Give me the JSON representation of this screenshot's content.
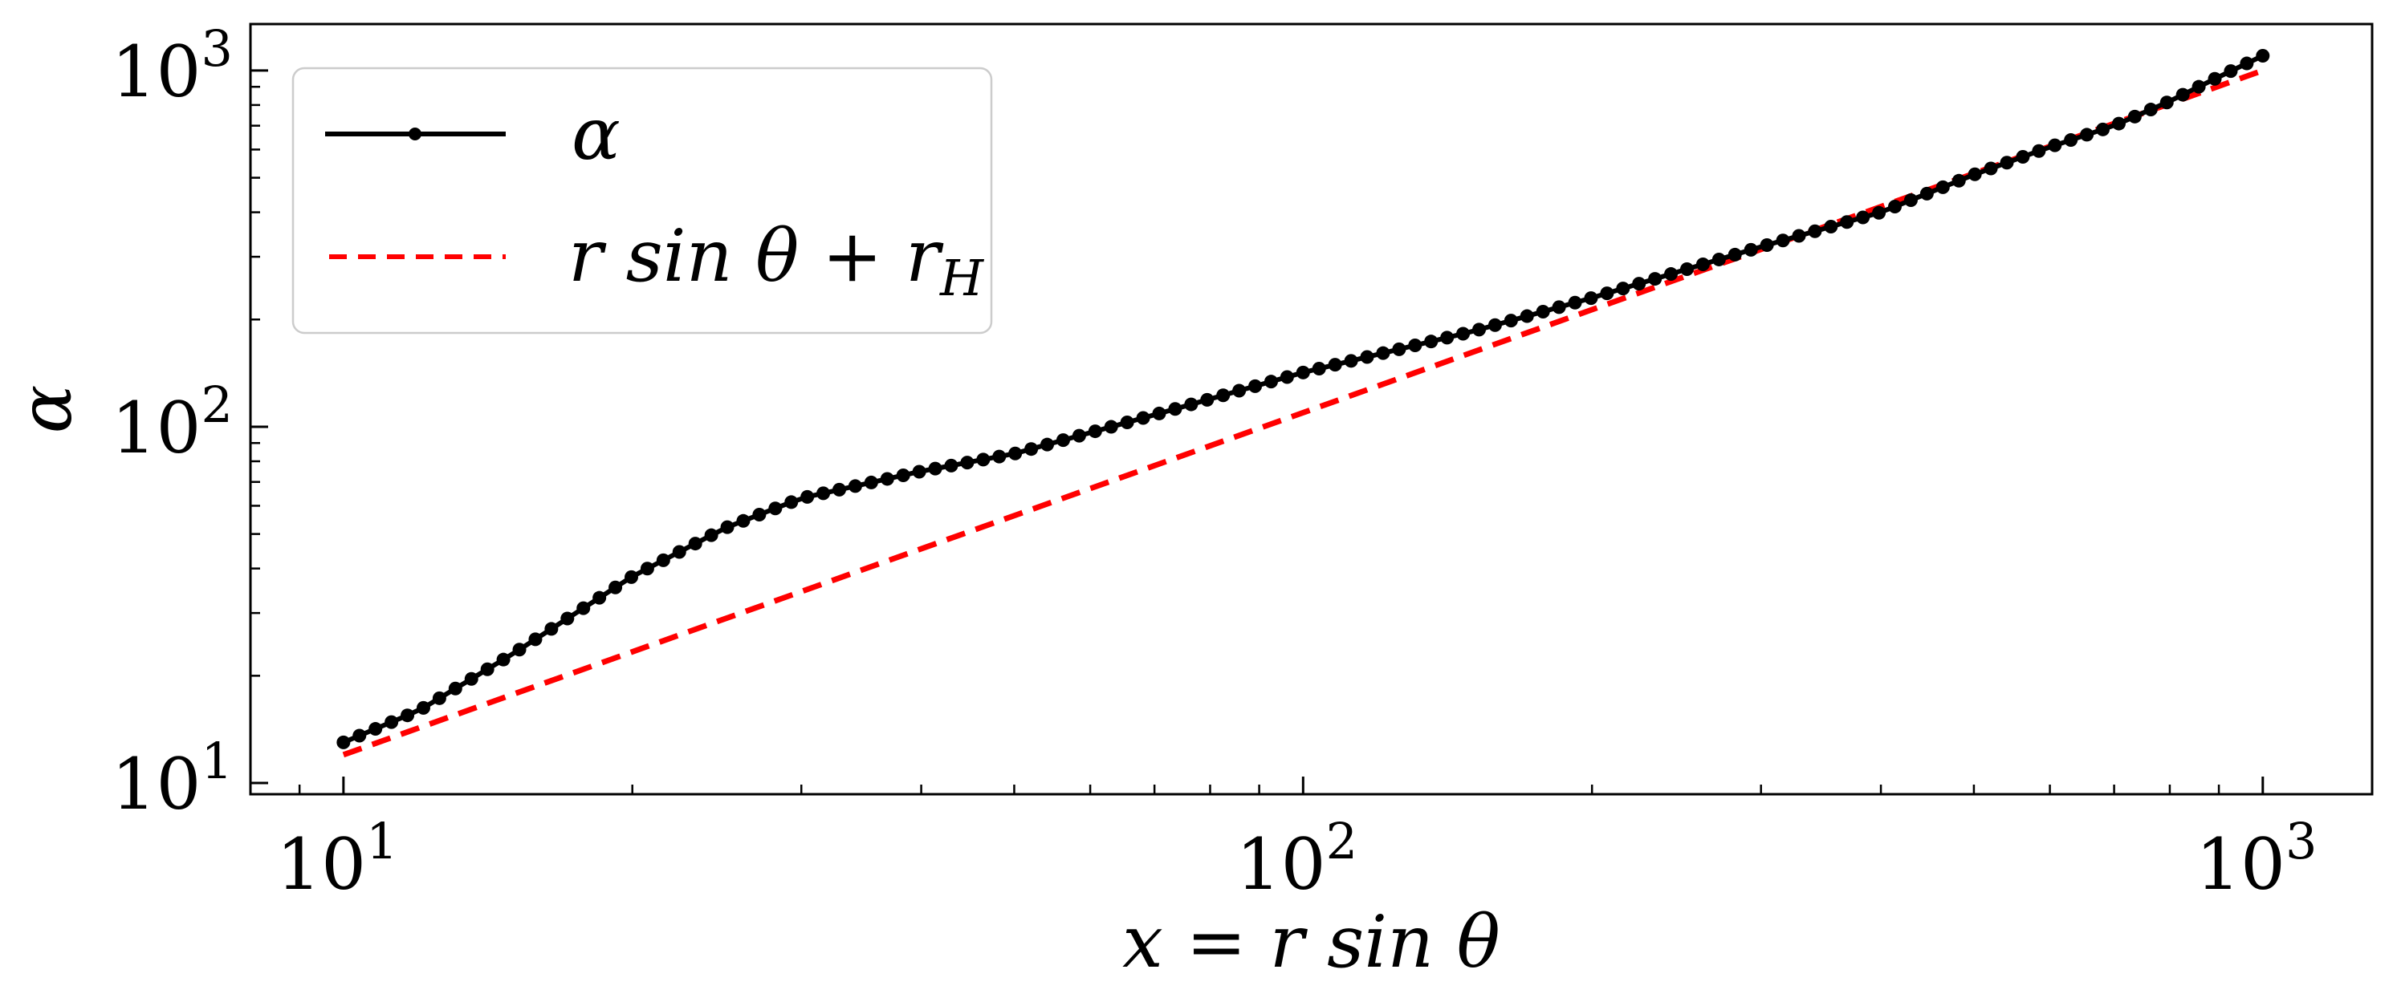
{
  "chart_data": {
    "type": "line",
    "x_scale": "log",
    "y_scale": "log",
    "xlim": [
      8,
      1300
    ],
    "ylim": [
      9.3,
      1350
    ],
    "x_ticks": [
      {
        "value": 10,
        "label": "10",
        "exp": "1"
      },
      {
        "value": 100,
        "label": "10",
        "exp": "2"
      },
      {
        "value": 1000,
        "label": "10",
        "exp": "3"
      }
    ],
    "y_ticks": [
      {
        "value": 10,
        "label": "10",
        "exp": "1"
      },
      {
        "value": 100,
        "label": "10",
        "exp": "2"
      },
      {
        "value": 1000,
        "label": "10",
        "exp": "3"
      }
    ],
    "xlabel": "x = r sin θ",
    "ylabel": "α",
    "legend_position": "top-left",
    "grid": false,
    "series": [
      {
        "name": "α",
        "color": "#000000",
        "style": "solid-with-dots",
        "x": [
          10,
          12,
          15,
          20,
          25,
          30,
          40,
          50,
          70,
          100,
          150,
          200,
          300,
          400,
          500,
          600,
          700,
          800,
          900,
          1000
        ],
        "y": [
          13,
          16,
          23,
          38,
          52,
          63,
          75,
          84,
          108,
          142,
          185,
          230,
          320,
          400,
          510,
          610,
          700,
          820,
          960,
          1100
        ]
      },
      {
        "name": "r sin θ + r_H",
        "color": "#ff0000",
        "style": "dashed",
        "x": [
          10,
          1000
        ],
        "y": [
          12,
          1000
        ]
      }
    ]
  },
  "legend": {
    "alpha_label": "α",
    "fit_label_main": "r sin θ + r",
    "fit_label_sub": "H"
  }
}
